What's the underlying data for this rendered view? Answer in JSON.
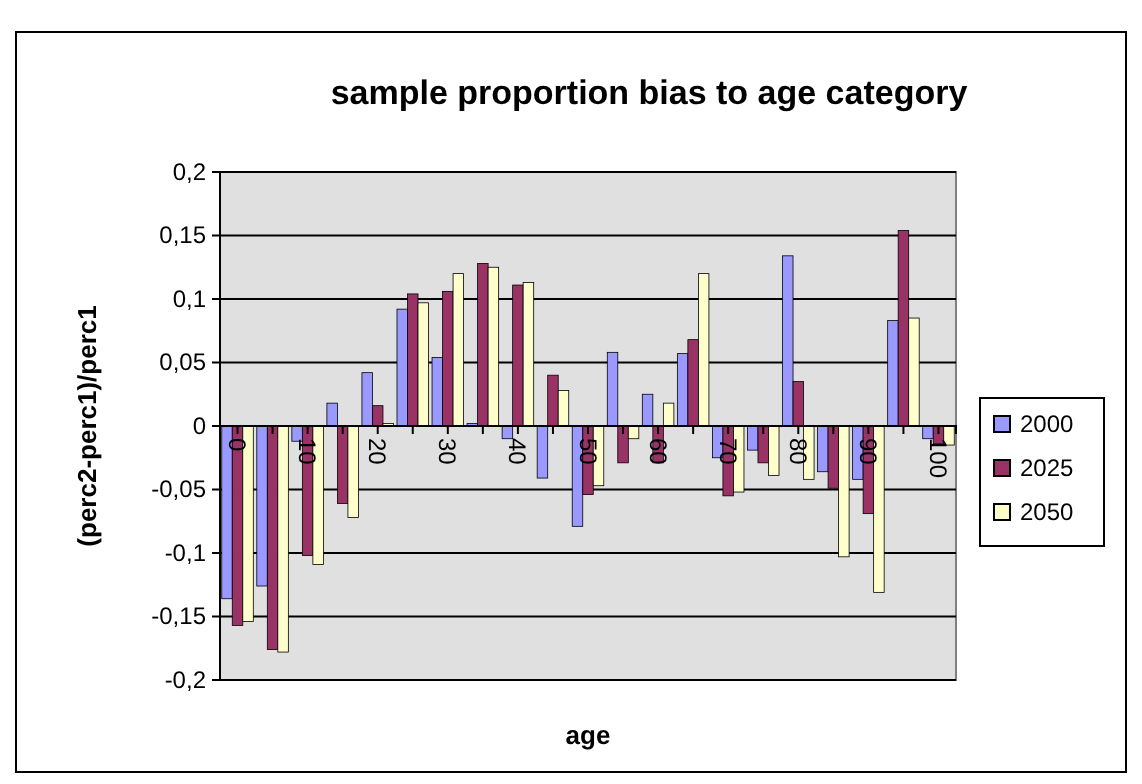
{
  "chart_data": {
    "type": "bar",
    "title": "sample proportion bias to age category",
    "xlabel": "age",
    "ylabel": "(perc2-perc1)/perc1",
    "categories": [
      "0",
      null,
      "10",
      null,
      "20",
      null,
      "30",
      null,
      "40",
      null,
      "50",
      null,
      "60",
      null,
      "70",
      null,
      "80",
      null,
      "90",
      null,
      "100"
    ],
    "series": [
      {
        "name": "2000",
        "color": "#9999ff",
        "values": [
          -0.136,
          -0.126,
          -0.012,
          0.018,
          0.042,
          0.092,
          0.054,
          0.002,
          -0.01,
          -0.041,
          -0.079,
          0.058,
          0.025,
          0.057,
          -0.025,
          -0.019,
          0.134,
          -0.036,
          -0.042,
          0.083,
          -0.01
        ]
      },
      {
        "name": "2025",
        "color": "#993366",
        "values": [
          -0.157,
          -0.176,
          -0.102,
          -0.061,
          0.016,
          0.104,
          0.106,
          0.128,
          0.111,
          0.04,
          -0.054,
          -0.029,
          -0.029,
          0.068,
          -0.055,
          -0.029,
          0.035,
          -0.049,
          -0.069,
          0.154,
          -0.014
        ]
      },
      {
        "name": "2050",
        "color": "#ffffcc",
        "values": [
          -0.154,
          -0.178,
          -0.109,
          -0.072,
          0.002,
          0.097,
          0.12,
          0.125,
          0.113,
          0.028,
          -0.047,
          -0.01,
          0.018,
          0.12,
          -0.052,
          -0.039,
          -0.042,
          -0.103,
          -0.131,
          0.085,
          -0.015
        ]
      }
    ],
    "ylim": [
      -0.2,
      0.2
    ],
    "yticks": [
      {
        "value": -0.2,
        "label": "-0,2"
      },
      {
        "value": -0.15,
        "label": "-0,15"
      },
      {
        "value": -0.1,
        "label": "-0,1"
      },
      {
        "value": -0.05,
        "label": "-0,05"
      },
      {
        "value": 0,
        "label": "0"
      },
      {
        "value": 0.05,
        "label": "0,05"
      },
      {
        "value": 0.1,
        "label": "0,1"
      },
      {
        "value": 0.15,
        "label": "0,15"
      },
      {
        "value": 0.2,
        "label": "0,2"
      }
    ],
    "grid": "y",
    "legend": "right"
  }
}
